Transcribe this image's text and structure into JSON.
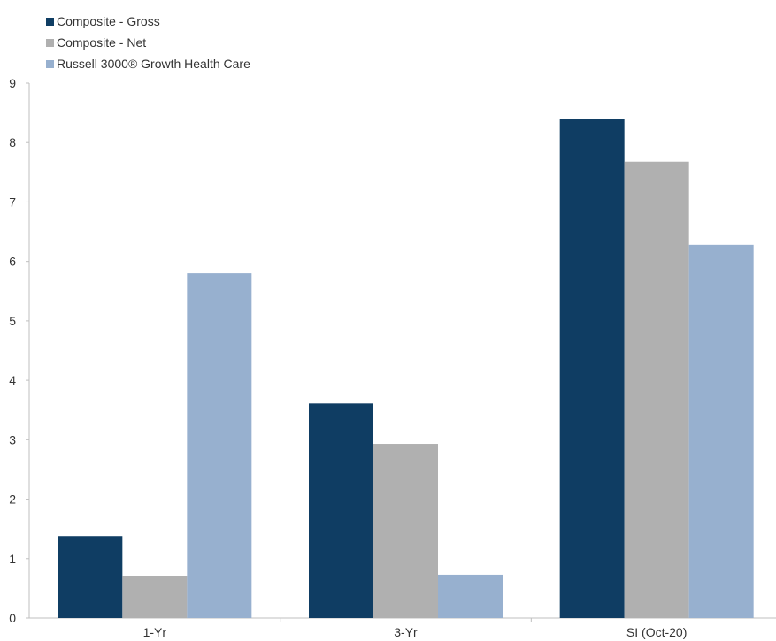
{
  "chart_data": {
    "type": "bar",
    "categories": [
      "1-Yr",
      "3-Yr",
      "SI (Oct-20)"
    ],
    "series": [
      {
        "name": "Composite - Gross",
        "color": "#0f3d63",
        "values": [
          1.38,
          3.61,
          8.39
        ]
      },
      {
        "name": "Composite - Net",
        "color": "#b0b0b0",
        "values": [
          0.7,
          2.93,
          7.68
        ]
      },
      {
        "name": "Russell 3000® Growth Health Care",
        "color": "#97b0cf",
        "values": [
          5.8,
          0.73,
          6.28
        ]
      }
    ],
    "ylim": [
      0,
      9
    ],
    "yticks": [
      0,
      1,
      2,
      3,
      4,
      5,
      6,
      7,
      8,
      9
    ],
    "grid": false,
    "legend": "top-left"
  }
}
